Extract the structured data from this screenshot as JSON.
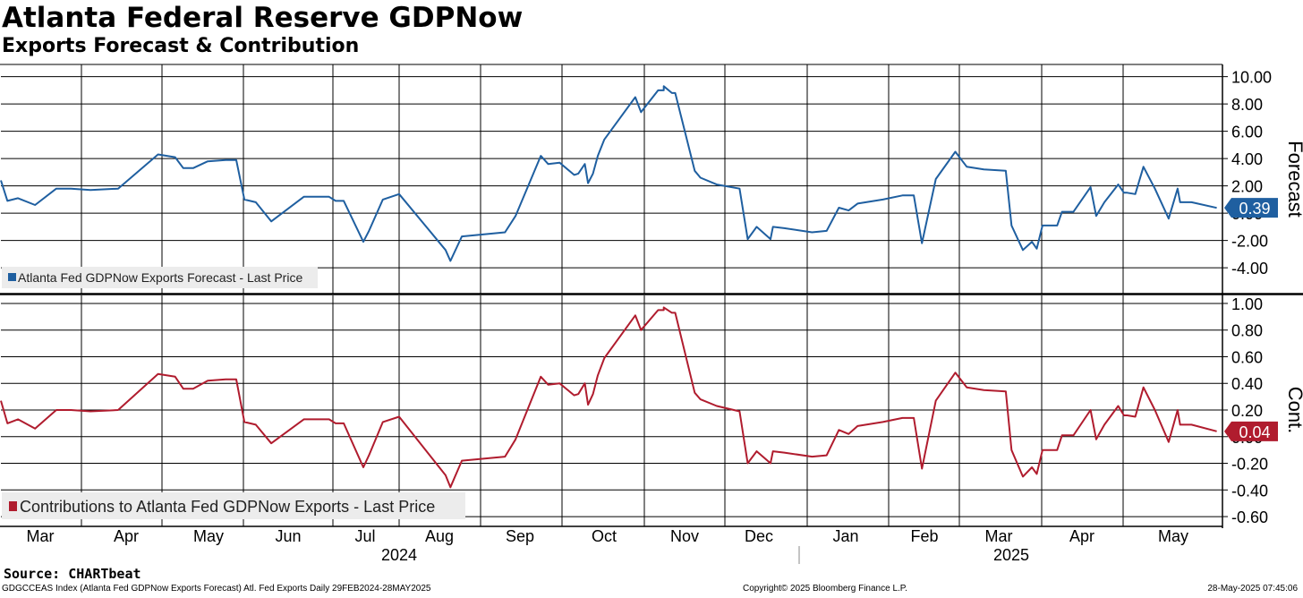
{
  "title": "Atlanta Federal Reserve GDPNow",
  "subtitle": "Exports Forecast & Contribution",
  "source": "Source: CHARTbeat",
  "footer": {
    "left": "GDGCCEAS Index (Atlanta Fed GDPNow Exports Forecast) Atl. Fed Exports  Daily 29FEB2024-28MAY2025",
    "center": "Copyright© 2025 Bloomberg Finance L.P.",
    "right": "28-May-2025 07:45:06"
  },
  "colors": {
    "forecast": "#1f5fa0",
    "contribution": "#b01c2e",
    "grid": "#000000"
  },
  "chart_data": [
    {
      "type": "line",
      "ylabel": "Forecast",
      "ylim": [
        -5.5,
        10.5
      ],
      "yticks": [
        "10.00",
        "8.00",
        "6.00",
        "4.00",
        "2.00",
        "0.00",
        "-2.00",
        "-4.00"
      ],
      "yvals": [
        10,
        8,
        6,
        4,
        2,
        0,
        -2,
        -4
      ],
      "last_value": "0.39",
      "legend": "Atlanta Fed GDPNow Exports Forecast - Last Price",
      "grid": true,
      "series": [
        {
          "name": "Atlanta Fed GDPNow Exports Forecast - Last Price",
          "x": [
            0.0,
            0.08,
            0.21,
            0.42,
            0.68,
            0.86,
            1.1,
            1.44,
            1.93,
            2.14,
            2.24,
            2.36,
            2.54,
            2.76,
            2.89,
            2.99,
            3.13,
            3.32,
            3.72,
            4.03,
            4.11,
            4.21,
            4.45,
            4.52,
            4.69,
            4.89,
            5.46,
            5.52,
            5.66,
            6.19,
            6.32,
            6.63,
            6.72,
            6.86,
            7.04,
            7.09,
            7.17,
            7.21,
            7.27,
            7.33,
            7.41,
            7.79,
            7.86,
            8.07,
            8.14,
            8.14,
            8.24,
            8.28,
            8.52,
            8.59,
            8.79,
            9.07,
            9.17,
            9.28,
            9.45,
            9.48,
            9.62,
            9.96,
            10.14,
            10.29,
            10.41,
            10.52,
            10.83,
            11.07,
            11.21,
            11.31,
            11.48,
            11.72,
            11.86,
            12.07,
            12.34,
            12.41,
            12.55,
            12.66,
            12.72,
            12.79,
            12.97,
            13.03,
            13.17,
            13.38,
            13.45,
            13.55,
            13.72,
            13.72,
            13.79,
            13.83,
            13.93,
            14.03,
            14.17,
            14.34,
            14.45,
            14.48,
            14.62,
            14.93
          ],
          "y": [
            2.4,
            0.9,
            1.1,
            0.6,
            1.8,
            1.8,
            1.7,
            1.8,
            4.3,
            4.1,
            3.3,
            3.3,
            3.8,
            3.9,
            3.9,
            1.0,
            0.8,
            -0.6,
            1.2,
            1.2,
            0.9,
            0.9,
            -2.1,
            -1.3,
            1.0,
            1.4,
            -2.7,
            -3.5,
            -1.7,
            -1.4,
            -0.2,
            4.2,
            3.6,
            3.7,
            2.8,
            2.9,
            3.6,
            2.2,
            2.9,
            4.2,
            5.4,
            8.5,
            7.4,
            9.0,
            9.0,
            9.3,
            8.8,
            8.8,
            3.1,
            2.6,
            2.1,
            1.8,
            -1.9,
            -1.0,
            -1.9,
            -1.0,
            -1.1,
            -1.4,
            -1.3,
            0.4,
            0.2,
            0.7,
            1.0,
            1.3,
            1.3,
            -2.2,
            2.5,
            4.5,
            3.4,
            3.2,
            3.1,
            -0.9,
            -2.7,
            -2.1,
            -2.6,
            -0.9,
            -0.9,
            0.1,
            0.1,
            1.9,
            -0.2,
            0.8,
            2.1,
            2.1,
            1.5,
            1.5,
            1.4,
            3.4,
            1.8,
            -0.4,
            1.8,
            0.8,
            0.8,
            0.39
          ]
        }
      ]
    },
    {
      "type": "line",
      "ylabel": "Cont.",
      "ylim": [
        -0.66,
        1.04
      ],
      "yticks": [
        "1.00",
        "0.80",
        "0.60",
        "0.40",
        "0.20",
        "0.00",
        "-0.20",
        "-0.40",
        "-0.60"
      ],
      "yvals": [
        1.0,
        0.8,
        0.6,
        0.4,
        0.2,
        0.0,
        -0.2,
        -0.4,
        -0.6
      ],
      "last_value": "0.04",
      "legend": "Contributions to Atlanta Fed GDPNow Exports - Last Price",
      "grid": true,
      "series": [
        {
          "name": "Contributions to Atlanta Fed GDPNow Exports - Last Price",
          "x": [
            0.0,
            0.08,
            0.21,
            0.42,
            0.68,
            0.86,
            1.1,
            1.44,
            1.93,
            2.14,
            2.24,
            2.36,
            2.54,
            2.76,
            2.89,
            2.99,
            3.13,
            3.32,
            3.72,
            4.03,
            4.11,
            4.21,
            4.45,
            4.52,
            4.69,
            4.89,
            5.46,
            5.52,
            5.66,
            6.19,
            6.32,
            6.63,
            6.72,
            6.86,
            7.04,
            7.09,
            7.17,
            7.21,
            7.27,
            7.33,
            7.41,
            7.79,
            7.86,
            8.07,
            8.14,
            8.14,
            8.24,
            8.28,
            8.52,
            8.59,
            8.79,
            9.07,
            9.17,
            9.28,
            9.45,
            9.48,
            9.62,
            9.96,
            10.14,
            10.29,
            10.41,
            10.52,
            10.83,
            11.07,
            11.21,
            11.31,
            11.48,
            11.72,
            11.86,
            12.07,
            12.34,
            12.41,
            12.55,
            12.66,
            12.72,
            12.79,
            12.97,
            13.03,
            13.17,
            13.38,
            13.45,
            13.55,
            13.72,
            13.72,
            13.79,
            13.83,
            13.93,
            14.03,
            14.17,
            14.34,
            14.45,
            14.48,
            14.62,
            14.93
          ],
          "y": [
            0.27,
            0.1,
            0.13,
            0.06,
            0.2,
            0.2,
            0.19,
            0.2,
            0.47,
            0.45,
            0.36,
            0.36,
            0.42,
            0.43,
            0.43,
            0.11,
            0.09,
            -0.05,
            0.13,
            0.13,
            0.1,
            0.1,
            -0.23,
            -0.14,
            0.11,
            0.15,
            -0.29,
            -0.38,
            -0.18,
            -0.15,
            -0.02,
            0.45,
            0.39,
            0.4,
            0.31,
            0.32,
            0.4,
            0.24,
            0.32,
            0.46,
            0.59,
            0.91,
            0.8,
            0.95,
            0.95,
            0.97,
            0.93,
            0.93,
            0.33,
            0.28,
            0.23,
            0.19,
            -0.2,
            -0.11,
            -0.2,
            -0.11,
            -0.12,
            -0.15,
            -0.14,
            0.05,
            0.02,
            0.08,
            0.11,
            0.14,
            0.14,
            -0.24,
            0.27,
            0.48,
            0.37,
            0.35,
            0.34,
            -0.1,
            -0.3,
            -0.23,
            -0.28,
            -0.1,
            -0.1,
            0.01,
            0.01,
            0.2,
            -0.02,
            0.09,
            0.23,
            0.23,
            0.16,
            0.16,
            0.15,
            0.37,
            0.2,
            -0.04,
            0.2,
            0.09,
            0.09,
            0.04
          ]
        }
      ]
    }
  ],
  "x_axis": {
    "months": [
      "Mar",
      "Apr",
      "May",
      "Jun",
      "Jul",
      "Aug",
      "Sep",
      "Oct",
      "Nov",
      "Dec",
      "Jan",
      "Feb",
      "Mar",
      "Apr",
      "May"
    ],
    "years": [
      "2024",
      "2025"
    ]
  }
}
